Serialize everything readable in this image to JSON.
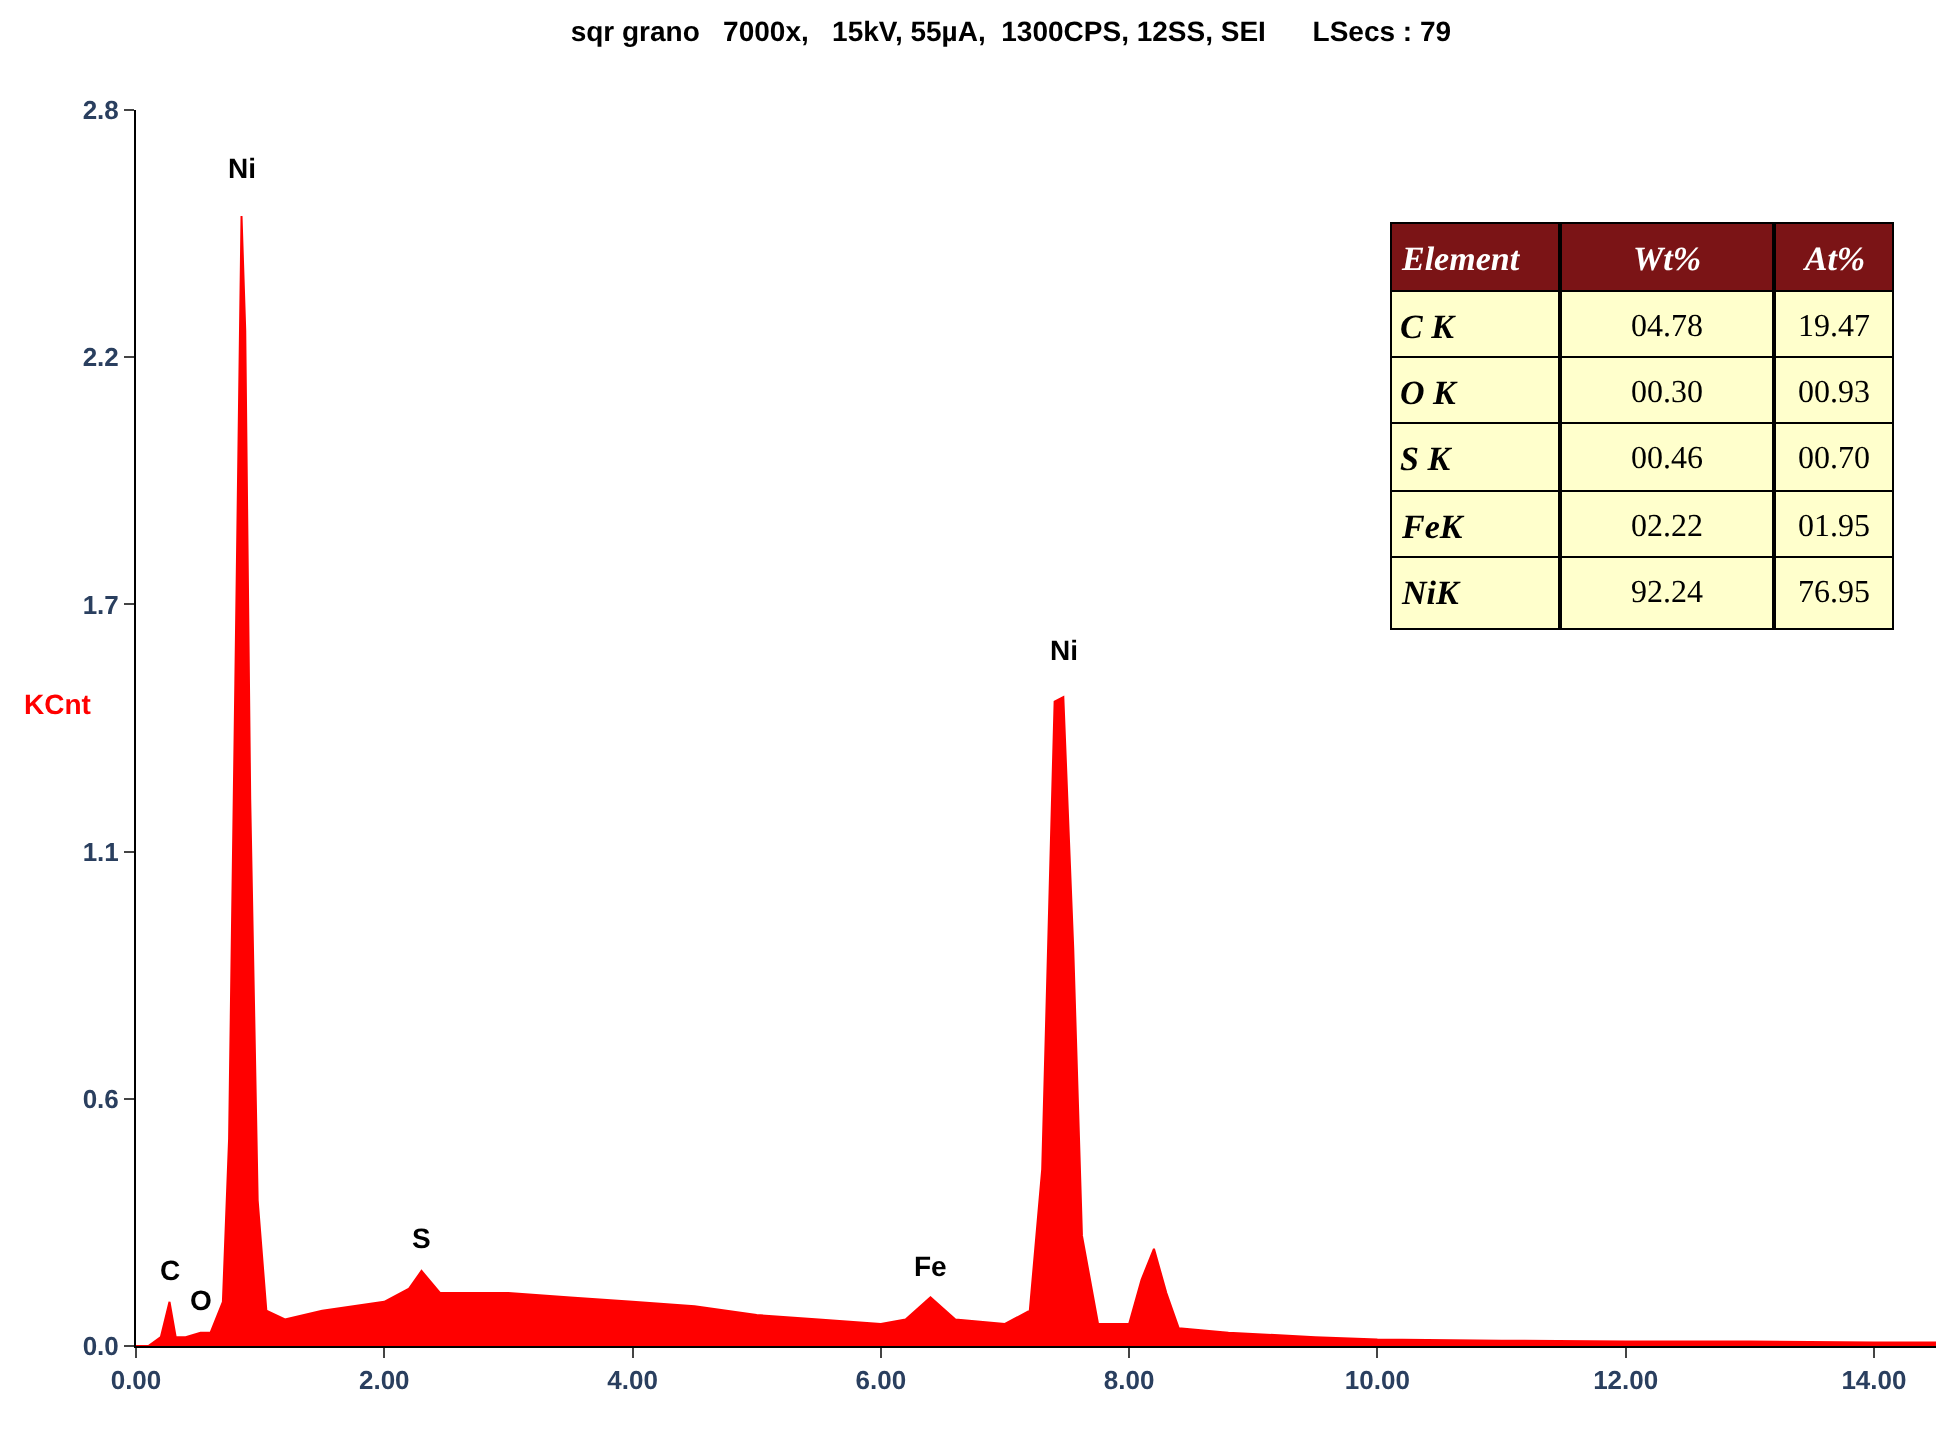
{
  "chart_data": {
    "type": "area",
    "title": "sqr grano   7000x,   15kV, 55µA,  1300CPS, 12SS, SEI      LSecs : 79",
    "ylabel": "KCnt",
    "x": [
      0.0,
      0.1,
      0.2,
      0.27,
      0.32,
      0.4,
      0.52,
      0.6,
      0.7,
      0.75,
      0.8,
      0.85,
      0.88,
      0.92,
      0.98,
      1.05,
      1.2,
      1.5,
      2.0,
      2.2,
      2.3,
      2.45,
      3.0,
      3.5,
      4.0,
      4.5,
      5.0,
      5.5,
      6.0,
      6.2,
      6.4,
      6.6,
      7.0,
      7.2,
      7.3,
      7.4,
      7.47,
      7.55,
      7.62,
      7.75,
      8.0,
      8.1,
      8.2,
      8.3,
      8.4,
      8.8,
      9.5,
      10.0,
      11.0,
      12.0,
      13.0,
      14.0,
      14.5
    ],
    "series": [
      {
        "color": "#ff0000",
        "values": [
          0,
          0,
          0.02,
          0.1,
          0.02,
          0.02,
          0.03,
          0.03,
          0.1,
          0.47,
          1.5,
          2.56,
          2.3,
          1.24,
          0.33,
          0.08,
          0.06,
          0.08,
          0.1,
          0.13,
          0.17,
          0.12,
          0.12,
          0.11,
          0.1,
          0.09,
          0.07,
          0.06,
          0.05,
          0.06,
          0.11,
          0.06,
          0.05,
          0.08,
          0.4,
          1.46,
          1.47,
          0.9,
          0.25,
          0.05,
          0.05,
          0.15,
          0.22,
          0.12,
          0.04,
          0.03,
          0.02,
          0.015,
          0.012,
          0.01,
          0.01,
          0.008,
          0.008
        ]
      }
    ],
    "xlim": [
      0,
      14.5
    ],
    "xticks": [
      {
        "value": 0,
        "label": "0.00"
      },
      {
        "value": 2,
        "label": "2.00"
      },
      {
        "value": 4,
        "label": "4.00"
      },
      {
        "value": 6,
        "label": "6.00"
      },
      {
        "value": 8,
        "label": "8.00"
      },
      {
        "value": 10,
        "label": "10.00"
      },
      {
        "value": 12,
        "label": "12.00"
      },
      {
        "value": 14,
        "label": "14.00"
      }
    ],
    "ylim": [
      0,
      2.8
    ],
    "yticks": [
      {
        "value": 0,
        "label": "0.0"
      },
      {
        "value": 0.56,
        "label": "0.6"
      },
      {
        "value": 1.12,
        "label": "1.1"
      },
      {
        "value": 1.68,
        "label": "1.7"
      },
      {
        "value": 2.24,
        "label": "2.2"
      },
      {
        "value": 2.8,
        "label": "2.8"
      }
    ],
    "grid": false,
    "legend": false,
    "marker": "none",
    "annotations": [
      {
        "text": "Ni",
        "x": 0.85,
        "y": 2.56
      },
      {
        "text": "Ni",
        "x": 7.47,
        "y": 1.47
      },
      {
        "text": "C",
        "x": 0.27,
        "y": 0.1
      },
      {
        "text": "O",
        "x": 0.52,
        "y": 0.03
      },
      {
        "text": "S",
        "x": 2.3,
        "y": 0.17
      },
      {
        "text": "Fe",
        "x": 6.4,
        "y": 0.11
      },
      "Element",
      "Wt%",
      "At%",
      "C K",
      "04.78",
      "19.47",
      "O K",
      "00.30",
      "00.93",
      "S K",
      "00.46",
      "00.70",
      "FeK",
      "02.22",
      "01.95",
      "NiK",
      "92.24",
      "76.95"
    ]
  }
}
